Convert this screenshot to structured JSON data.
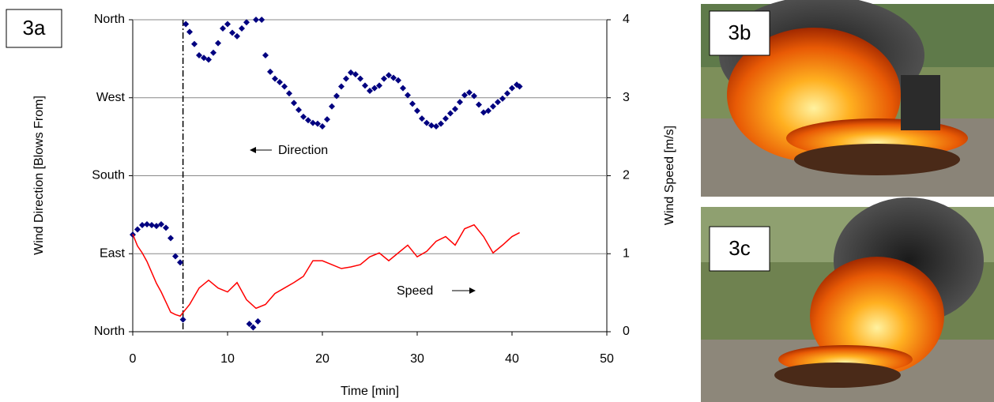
{
  "chart_data": {
    "type": "scatter",
    "panel_label": "3a",
    "xlabel": "Time [min]",
    "ylabel": "Wind Direction [Blows From]",
    "y2label": "Wind Speed [m/s]",
    "xlim": [
      0,
      50
    ],
    "xticks": [
      0,
      10,
      20,
      30,
      40,
      50
    ],
    "ylim": [
      0,
      360
    ],
    "yticks": [
      {
        "value": 0,
        "label": "North"
      },
      {
        "value": 90,
        "label": "East"
      },
      {
        "value": 180,
        "label": "South"
      },
      {
        "value": 270,
        "label": "West"
      },
      {
        "value": 360,
        "label": "North"
      }
    ],
    "y2lim": [
      0,
      4
    ],
    "y2ticks": [
      0,
      1,
      2,
      3,
      4
    ],
    "grid": true,
    "vline": 5.3,
    "annotations": [
      "Direction",
      "Speed"
    ],
    "series": [
      {
        "name": "Direction",
        "color": "#000080",
        "x": [
          0,
          0.5,
          1,
          1.5,
          2,
          2.5,
          3,
          3.5,
          4,
          4.5,
          5,
          5.3,
          5.6,
          6,
          6.5,
          7,
          7.5,
          8,
          8.5,
          9,
          9.5,
          10,
          10.5,
          11,
          11.5,
          12,
          12.3,
          12.7,
          13,
          13.2,
          13.6,
          14,
          14.5,
          15,
          15.5,
          16,
          16.5,
          17,
          17.5,
          18,
          18.5,
          19,
          19.5,
          20,
          20.5,
          21,
          21.5,
          22,
          22.5,
          23,
          23.5,
          24,
          24.5,
          25,
          25.5,
          26,
          26.5,
          27,
          27.5,
          28,
          28.5,
          29,
          29.5,
          30,
          30.5,
          31,
          31.5,
          32,
          32.5,
          33,
          33.5,
          34,
          34.5,
          35,
          35.5,
          36,
          36.5,
          37,
          37.5,
          38,
          38.5,
          39,
          39.5,
          40,
          40.5,
          40.8
        ],
        "values": [
          112,
          118,
          123,
          124,
          123,
          122,
          124,
          120,
          108,
          87,
          80,
          14,
          355,
          346,
          332,
          319,
          316,
          314,
          322,
          333,
          350,
          355,
          345,
          341,
          350,
          357,
          9,
          5,
          360,
          12,
          360,
          319,
          300,
          292,
          288,
          283,
          275,
          264,
          256,
          248,
          244,
          241,
          240,
          237,
          245,
          260,
          272,
          283,
          292,
          299,
          297,
          292,
          284,
          278,
          281,
          284,
          292,
          296,
          293,
          290,
          281,
          273,
          263,
          255,
          246,
          241,
          238,
          237,
          240,
          246,
          252,
          257,
          265,
          273,
          276,
          272,
          262,
          253,
          255,
          260,
          265,
          269,
          275,
          281,
          285,
          283
        ]
      },
      {
        "name": "Speed",
        "color": "#ff0000",
        "axis": "y2",
        "x": [
          0,
          0.5,
          1,
          1.5,
          2,
          2.5,
          3,
          3.5,
          4,
          4.5,
          5,
          6,
          7,
          8,
          9,
          10,
          11,
          12,
          13,
          14,
          15,
          16,
          17,
          18,
          19,
          20,
          21,
          22,
          23,
          24,
          25,
          26,
          27,
          28,
          29,
          30,
          31,
          32,
          33,
          34,
          35,
          36,
          37,
          38,
          39,
          40,
          40.8
        ],
        "values": [
          1.25,
          1.1,
          1.01,
          0.9,
          0.76,
          0.62,
          0.51,
          0.38,
          0.25,
          0.22,
          0.2,
          0.35,
          0.56,
          0.66,
          0.56,
          0.51,
          0.63,
          0.41,
          0.3,
          0.35,
          0.49,
          0.56,
          0.63,
          0.71,
          0.91,
          0.91,
          0.86,
          0.81,
          0.83,
          0.86,
          0.96,
          1.01,
          0.91,
          1.01,
          1.11,
          0.96,
          1.03,
          1.16,
          1.22,
          1.11,
          1.32,
          1.37,
          1.22,
          1.01,
          1.11,
          1.22,
          1.27
        ]
      }
    ]
  },
  "photos": [
    {
      "label": "3b"
    },
    {
      "label": "3c"
    }
  ]
}
